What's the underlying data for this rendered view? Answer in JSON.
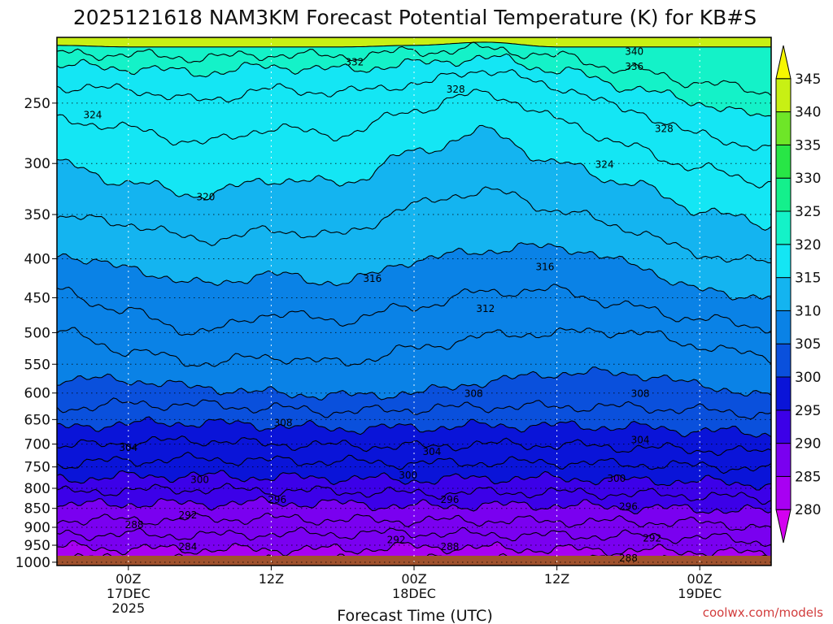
{
  "chart_data": {
    "type": "heatmap",
    "title": "2025121618 NAM3KM Forecast Potential Temperature (K) for KB#S",
    "xlabel": "Forecast Time (UTC)",
    "ylabel": "",
    "credit": "coolwx.com/models",
    "y_ticks": [
      250,
      300,
      350,
      400,
      450,
      500,
      550,
      600,
      650,
      700,
      750,
      800,
      850,
      900,
      950,
      1000
    ],
    "y_tick_labels": [
      "250",
      "300",
      "350",
      "400",
      "450",
      "500",
      "550",
      "600",
      "650",
      "700",
      "750",
      "800",
      "850",
      "900",
      "950",
      "1000"
    ],
    "x_ticks": [
      {
        "lines": [
          "00Z",
          "17DEC",
          "2025"
        ],
        "hour": 6
      },
      {
        "lines": [
          "12Z"
        ],
        "hour": 18
      },
      {
        "lines": [
          "00Z",
          "18DEC"
        ],
        "hour": 30
      },
      {
        "lines": [
          "12Z"
        ],
        "hour": 42
      },
      {
        "lines": [
          "00Z",
          "19DEC"
        ],
        "hour": 54
      }
    ],
    "x_range_hours": [
      0,
      60
    ],
    "y_range_hpa": [
      1010,
      205
    ],
    "colorbar": {
      "levels": [
        280,
        285,
        290,
        295,
        300,
        305,
        310,
        315,
        320,
        325,
        330,
        335,
        340,
        345
      ],
      "labels": [
        "280",
        "285",
        "290",
        "295",
        "300",
        "305",
        "310",
        "315",
        "320",
        "325",
        "330",
        "335",
        "340",
        "345"
      ],
      "colors": [
        "#d400f0",
        "#a800f2",
        "#7a00f0",
        "#3c00e8",
        "#0a14d8",
        "#0a50dc",
        "#0a82e6",
        "#14b4f0",
        "#14e6f4",
        "#14f2c8",
        "#14f08c",
        "#28e646",
        "#6ee628",
        "#c8f014",
        "#f6f600"
      ]
    },
    "isotherm_pressures_hpa": {
      "0": [
        1012,
        985,
        955,
        918,
        880,
        842,
        810,
        778,
        744,
        706,
        666,
        628,
        575,
        498,
        440,
        394,
        352,
        300,
        262,
        238,
        223,
        215,
        210
      ],
      "6": [
        1012,
        992,
        960,
        920,
        880,
        838,
        805,
        772,
        736,
        696,
        658,
        620,
        577,
        528,
        470,
        412,
        360,
        318,
        270,
        240,
        225,
        216,
        211
      ],
      "12": [
        1012,
        995,
        962,
        922,
        878,
        838,
        802,
        770,
        732,
        692,
        656,
        622,
        590,
        548,
        500,
        432,
        378,
        330,
        282,
        248,
        228,
        218,
        212
      ],
      "18": [
        1012,
        995,
        962,
        918,
        876,
        836,
        805,
        774,
        736,
        700,
        662,
        628,
        600,
        538,
        472,
        420,
        368,
        315,
        270,
        240,
        224,
        216,
        211
      ],
      "24": [
        1012,
        994,
        962,
        918,
        880,
        838,
        808,
        776,
        738,
        703,
        668,
        635,
        605,
        548,
        482,
        430,
        372,
        318,
        275,
        242,
        226,
        217,
        211
      ],
      "30": [
        1012,
        992,
        955,
        915,
        882,
        845,
        812,
        780,
        742,
        705,
        666,
        630,
        600,
        525,
        462,
        402,
        340,
        290,
        255,
        236,
        222,
        214,
        210
      ],
      "36": [
        1012,
        992,
        958,
        920,
        882,
        842,
        810,
        776,
        740,
        700,
        662,
        625,
        580,
        505,
        442,
        390,
        325,
        272,
        242,
        226,
        218,
        212,
        208
      ],
      "42": [
        1012,
        994,
        962,
        922,
        884,
        842,
        810,
        776,
        740,
        702,
        662,
        625,
        565,
        500,
        440,
        385,
        345,
        300,
        262,
        238,
        226,
        217,
        211
      ],
      "48": [
        1012,
        995,
        965,
        924,
        885,
        848,
        814,
        780,
        744,
        707,
        665,
        626,
        565,
        498,
        462,
        405,
        365,
        318,
        285,
        255,
        238,
        226,
        216
      ],
      "54": [
        1012,
        995,
        968,
        928,
        888,
        852,
        818,
        784,
        748,
        712,
        672,
        632,
        585,
        520,
        480,
        440,
        395,
        345,
        305,
        275,
        250,
        235,
        222
      ],
      "60": [
        1012,
        996,
        975,
        940,
        900,
        858,
        826,
        790,
        755,
        718,
        678,
        640,
        608,
        540,
        492,
        450,
        405,
        362,
        318,
        288,
        262,
        242,
        228
      ]
    },
    "contour_labels": [
      {
        "text": "340",
        "hour": 48.5,
        "p": 214
      },
      {
        "text": "336",
        "hour": 48.5,
        "p": 224
      },
      {
        "text": "332",
        "hour": 25.0,
        "p": 221
      },
      {
        "text": "328",
        "hour": 33.5,
        "p": 240
      },
      {
        "text": "324",
        "hour": 3.0,
        "p": 259
      },
      {
        "text": "328",
        "hour": 51.0,
        "p": 270
      },
      {
        "text": "324",
        "hour": 46.0,
        "p": 301
      },
      {
        "text": "320",
        "hour": 12.5,
        "p": 332
      },
      {
        "text": "316",
        "hour": 26.5,
        "p": 425
      },
      {
        "text": "316",
        "hour": 41.0,
        "p": 410
      },
      {
        "text": "312",
        "hour": 36.0,
        "p": 465
      },
      {
        "text": "308",
        "hour": 19.0,
        "p": 657
      },
      {
        "text": "308",
        "hour": 35.0,
        "p": 601
      },
      {
        "text": "308",
        "hour": 49.0,
        "p": 601
      },
      {
        "text": "304",
        "hour": 6.0,
        "p": 708
      },
      {
        "text": "304",
        "hour": 31.5,
        "p": 716
      },
      {
        "text": "304",
        "hour": 49.0,
        "p": 691
      },
      {
        "text": "300",
        "hour": 12.0,
        "p": 780
      },
      {
        "text": "300",
        "hour": 29.5,
        "p": 769
      },
      {
        "text": "300",
        "hour": 47.0,
        "p": 777
      },
      {
        "text": "296",
        "hour": 18.5,
        "p": 828
      },
      {
        "text": "296",
        "hour": 33.0,
        "p": 828
      },
      {
        "text": "296",
        "hour": 48.0,
        "p": 845
      },
      {
        "text": "292",
        "hour": 11.0,
        "p": 868
      },
      {
        "text": "292",
        "hour": 28.5,
        "p": 935
      },
      {
        "text": "292",
        "hour": 50.0,
        "p": 930
      },
      {
        "text": "288",
        "hour": 6.5,
        "p": 893
      },
      {
        "text": "288",
        "hour": 33.0,
        "p": 955
      },
      {
        "text": "288",
        "hour": 48.0,
        "p": 988
      },
      {
        "text": "284",
        "hour": 11.0,
        "p": 955
      }
    ],
    "grid": true,
    "legend": "colorbar-right"
  }
}
